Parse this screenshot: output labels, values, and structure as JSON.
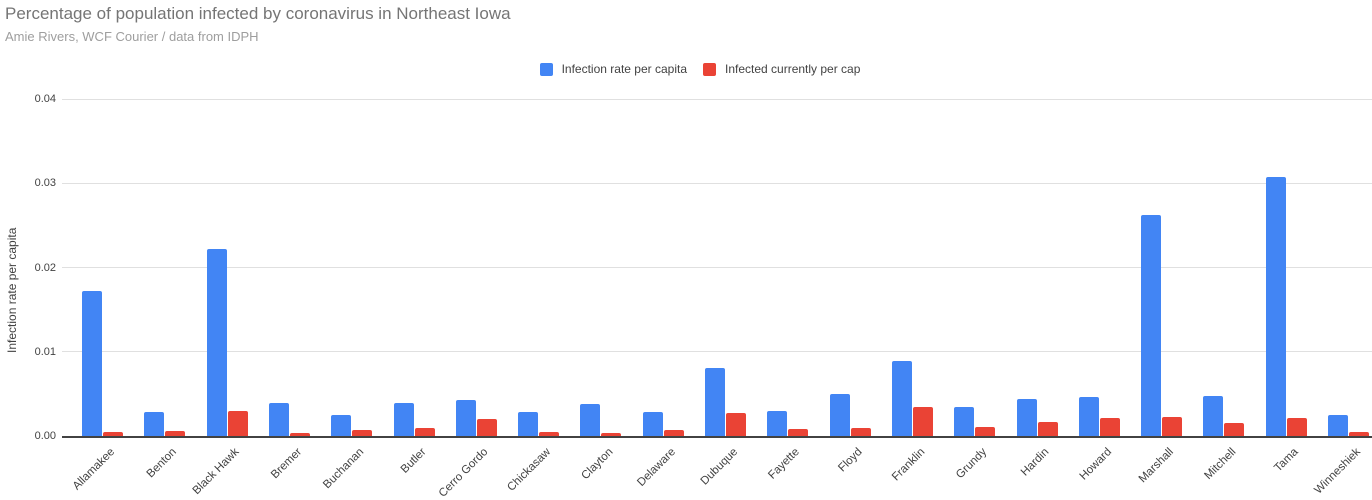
{
  "header": {
    "title": "Percentage of population infected by coronavirus in Northeast Iowa",
    "subtitle": "Amie Rivers, WCF Courier / data from IDPH"
  },
  "legend": {
    "items": [
      {
        "label": "Infection rate per capita",
        "color": "#4285F4"
      },
      {
        "label": "Infected currently per cap",
        "color": "#EA4335"
      }
    ]
  },
  "colors": {
    "series_blue": "#4285F4",
    "series_red": "#EA4335",
    "title_text": "#757575",
    "subtitle_text": "#9e9e9e",
    "axis_text": "#424242",
    "gridline": "#e0e0e0",
    "axis_line": "#424242"
  },
  "chart_data": {
    "type": "bar",
    "title": "Percentage of population infected by coronavirus in Northeast Iowa",
    "subtitle": "Amie Rivers, WCF Courier / data from IDPH",
    "xlabel": "",
    "ylabel": "Infection rate per capita",
    "ylim": [
      0,
      0.04
    ],
    "yticks": [
      "0.00",
      "0.01",
      "0.02",
      "0.03",
      "0.04"
    ],
    "grid": true,
    "legend_position": "top-center",
    "categories": [
      "Allamakee",
      "Benton",
      "Black Hawk",
      "Bremer",
      "Buchanan",
      "Butler",
      "Cerro Gordo",
      "Chickasaw",
      "Clayton",
      "Delaware",
      "Dubuque",
      "Fayette",
      "Floyd",
      "Franklin",
      "Grundy",
      "Hardin",
      "Howard",
      "Marshall",
      "Mitchell",
      "Tama",
      "Winneshiek"
    ],
    "series": [
      {
        "name": "Infection rate per capita",
        "color": "#4285F4",
        "values": [
          0.0172,
          0.0029,
          0.0222,
          0.0039,
          0.0025,
          0.0039,
          0.0043,
          0.0028,
          0.0038,
          0.0029,
          0.0081,
          0.003,
          0.005,
          0.0089,
          0.0034,
          0.0044,
          0.0046,
          0.0262,
          0.0048,
          0.0307,
          0.0025
        ]
      },
      {
        "name": "Infected currently per cap",
        "color": "#EA4335",
        "values": [
          0.0005,
          0.0006,
          0.003,
          0.0003,
          0.0007,
          0.0009,
          0.002,
          0.0005,
          0.0003,
          0.0007,
          0.0027,
          0.0008,
          0.001,
          0.0035,
          0.0011,
          0.0017,
          0.0021,
          0.0023,
          0.0016,
          0.0021,
          0.0005
        ]
      }
    ]
  }
}
